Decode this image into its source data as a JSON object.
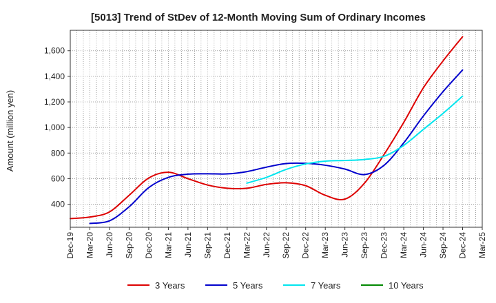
{
  "chart_data": {
    "type": "line",
    "title": "[5013]  Trend of StDev of 12-Month Moving Sum of Ordinary Incomes",
    "xlabel": "",
    "ylabel": "Amount (million yen)",
    "ylim": [
      220,
      1760
    ],
    "yticks": [
      400,
      600,
      800,
      1000,
      1200,
      1400,
      1600
    ],
    "ytick_labels": [
      "400",
      "600",
      "800",
      "1,000",
      "1,200",
      "1,400",
      "1,600"
    ],
    "categories": [
      "Dec-19",
      "Mar-20",
      "Jun-20",
      "Sep-20",
      "Dec-20",
      "Mar-21",
      "Jun-21",
      "Sep-21",
      "Dec-21",
      "Mar-22",
      "Jun-22",
      "Sep-22",
      "Dec-22",
      "Mar-23",
      "Jun-23",
      "Sep-23",
      "Dec-23",
      "Mar-24",
      "Jun-24",
      "Sep-24",
      "Dec-24",
      "Mar-25"
    ],
    "grid": true,
    "legend_position": "bottom",
    "series": [
      {
        "name": "3 Years",
        "color": "#dd0000",
        "values": [
          288,
          300,
          340,
          470,
          605,
          650,
          600,
          550,
          525,
          525,
          555,
          568,
          545,
          470,
          440,
          565,
          790,
          1040,
          1310,
          1520,
          1710,
          null
        ]
      },
      {
        "name": "5 Years",
        "color": "#0000cc",
        "values": [
          null,
          250,
          270,
          380,
          530,
          610,
          635,
          638,
          637,
          655,
          690,
          718,
          720,
          705,
          675,
          632,
          705,
          880,
          1090,
          1280,
          1450,
          null
        ]
      },
      {
        "name": "7 Years",
        "color": "#00e5ee",
        "values": [
          null,
          null,
          null,
          null,
          null,
          null,
          null,
          null,
          null,
          565,
          610,
          672,
          715,
          737,
          742,
          750,
          775,
          860,
          985,
          1110,
          1245,
          null
        ]
      },
      {
        "name": "10 Years",
        "color": "#008800",
        "values": [
          null,
          null,
          null,
          null,
          null,
          null,
          null,
          null,
          null,
          null,
          null,
          null,
          null,
          null,
          null,
          null,
          null,
          null,
          null,
          null,
          null,
          null
        ]
      }
    ]
  }
}
